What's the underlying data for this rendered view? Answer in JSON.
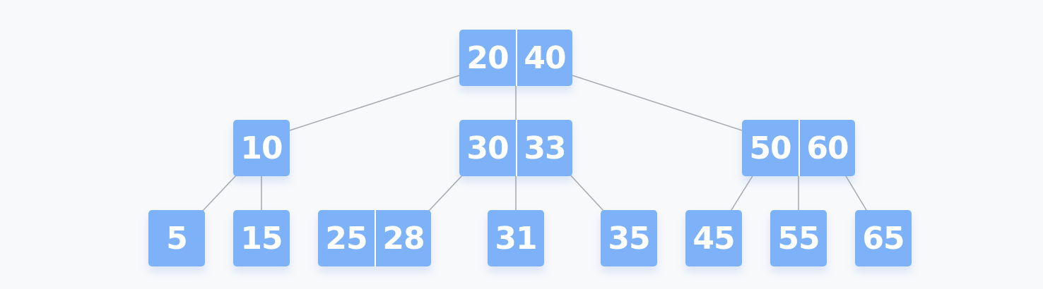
{
  "tree": {
    "root": {
      "keys": [
        "20",
        "40"
      ],
      "children": [
        {
          "keys": [
            "10"
          ],
          "children": [
            {
              "keys": [
                "5"
              ],
              "children": []
            },
            {
              "keys": [
                "15"
              ],
              "children": []
            }
          ]
        },
        {
          "keys": [
            "30",
            "33"
          ],
          "children": [
            {
              "keys": [
                "25",
                "28"
              ],
              "children": []
            },
            {
              "keys": [
                "31"
              ],
              "children": []
            },
            {
              "keys": [
                "35"
              ],
              "children": []
            }
          ]
        },
        {
          "keys": [
            "50",
            "60"
          ],
          "children": [
            {
              "keys": [
                "45"
              ],
              "children": []
            },
            {
              "keys": [
                "55"
              ],
              "children": []
            },
            {
              "keys": [
                "65"
              ],
              "children": []
            }
          ]
        }
      ]
    }
  },
  "colors": {
    "node_fill": "#7eb2f8",
    "key_text": "#ffffff",
    "edge": "#a9acb2",
    "background": "#f8f9fb"
  }
}
